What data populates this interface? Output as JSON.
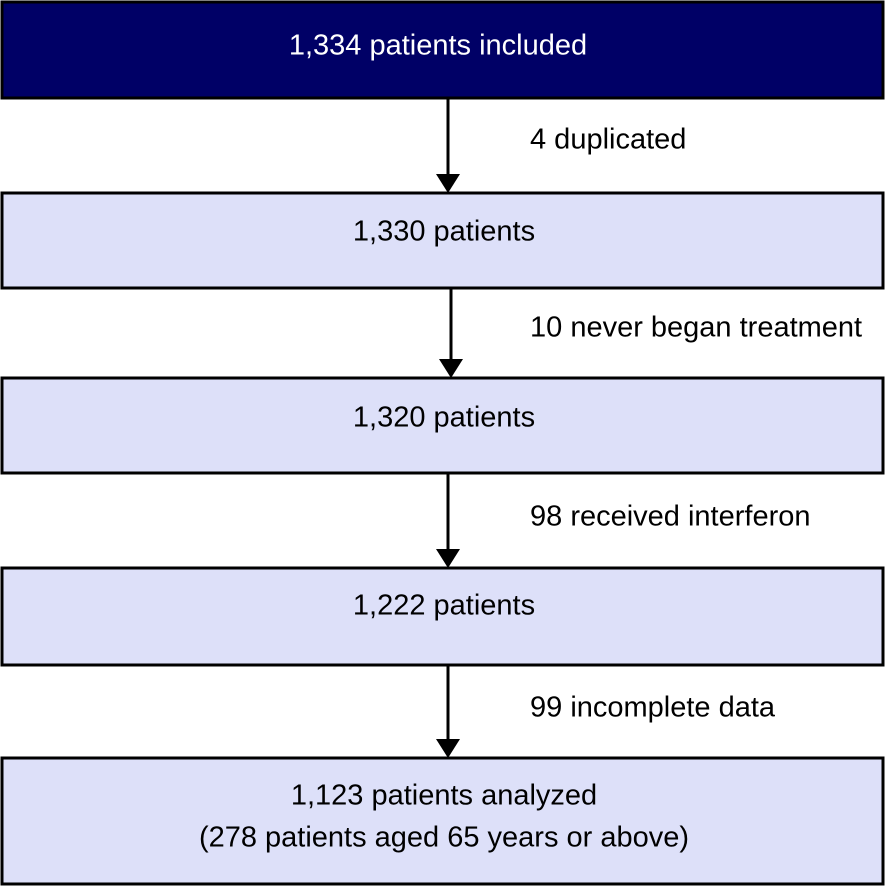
{
  "nodes": [
    {
      "lines": [
        "1,334 patients included"
      ]
    },
    {
      "lines": [
        "1,330 patients"
      ]
    },
    {
      "lines": [
        "1,320 patients"
      ]
    },
    {
      "lines": [
        "1,222 patients"
      ]
    },
    {
      "lines": [
        "1,123 patients analyzed",
        "(278 patients aged 65 years or above)"
      ]
    }
  ],
  "edges": [
    {
      "label": "4 duplicated"
    },
    {
      "label": "10 never began treatment"
    },
    {
      "label": "98 received interferon"
    },
    {
      "label": "99 incomplete data"
    }
  ]
}
